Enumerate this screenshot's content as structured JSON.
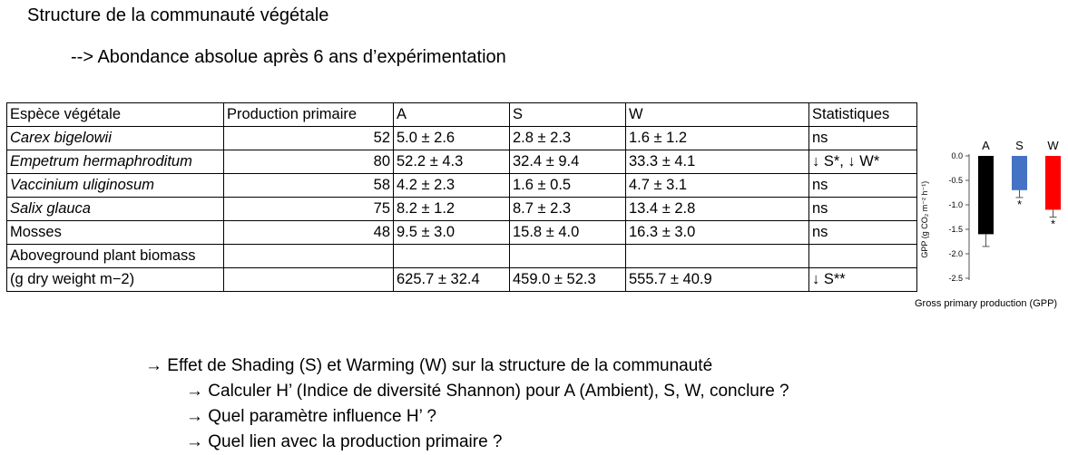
{
  "title": "Structure de la communauté végétale",
  "subtitle": "--> Abondance absolue après 6 ans d’expérimentation",
  "table": {
    "headers": [
      "Espèce végétale",
      "Production primaire",
      "A",
      "S",
      "W",
      "Statistiques"
    ],
    "rows": [
      {
        "species": "Carex bigelowii",
        "italic": true,
        "pp": "52",
        "A": "5.0 ± 2.6",
        "S": "2.8 ± 2.3",
        "W": "1.6 ± 1.2",
        "stats": "ns"
      },
      {
        "species": "Empetrum hermaphroditum",
        "italic": true,
        "pp": "80",
        "A": "52.2 ± 4.3",
        "S": "32.4 ± 9.4",
        "W": "33.3 ± 4.1",
        "stats": "↓ S*, ↓ W*"
      },
      {
        "species": "Vaccinium uliginosum",
        "italic": true,
        "pp": "58",
        "A": "4.2 ± 2.3",
        "S": "1.6 ± 0.5",
        "W": " 4.7 ± 3.1",
        "stats": "ns"
      },
      {
        "species": "Salix glauca",
        "italic": true,
        "pp": "75",
        "A": "8.2 ± 1.2",
        "S": "8.7 ± 2.3",
        "W": "13.4 ± 2.8",
        "stats": "ns"
      },
      {
        "species": "Mosses",
        "italic": false,
        "pp": "48",
        "A": "9.5 ± 3.0",
        "S": "15.8 ± 4.0",
        "W": "16.3 ± 3.0",
        "stats": "ns"
      }
    ],
    "biomass": {
      "label_line1": "Aboveground plant biomass",
      "label_line2": "(g dry weight m−2)",
      "pp": "",
      "A": "625.7 ± 32.4",
      "S": "459.0 ± 52.3",
      "W": "555.7 ± 40.9",
      "stats": "↓ S**"
    }
  },
  "chart_data": {
    "type": "bar",
    "categories": [
      "A",
      "S",
      "W"
    ],
    "values": [
      -1.6,
      -0.7,
      -1.1
    ],
    "errors": [
      0.25,
      0.15,
      0.15
    ],
    "significance": [
      "",
      "*",
      "*"
    ],
    "colors": [
      "#000000",
      "#4472c4",
      "#ff0000"
    ],
    "ylabel": "GPP (g CO₂ m⁻² h⁻¹)",
    "yticks": [
      "0.0",
      "-0.5",
      "-1.0",
      "-1.5",
      "-2.0",
      "-2.5"
    ],
    "ylim": [
      -2.5,
      0
    ],
    "caption": "Gross primary production (GPP)"
  },
  "bullets": [
    {
      "level": 1,
      "text": "→ Effet de Shading (S) et Warming (W) sur la structure de la communauté"
    },
    {
      "level": 2,
      "text": "→ Calculer H’ (Indice de diversité Shannon) pour A (Ambient), S, W, conclure ?"
    },
    {
      "level": 2,
      "text": "→ Quel paramètre influence H’ ?"
    },
    {
      "level": 2,
      "text": "→ Quel lien avec la production primaire ?"
    }
  ]
}
